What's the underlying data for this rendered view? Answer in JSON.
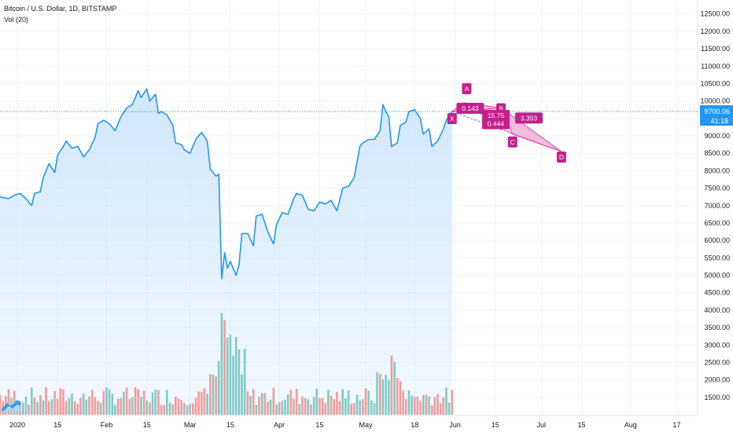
{
  "legend": {
    "title": "Bitcoin / U.S. Dollar, 1D, BITSTAMP",
    "volume_label": "Vol (20)"
  },
  "colors": {
    "line": "#2196f3",
    "area_top": "#cfe6fb",
    "vol_up": "#7fcac4",
    "vol_down": "#f49a9a",
    "pattern": "#e040a0",
    "label_bg": "#c2208e",
    "price_line": "#2196f3"
  },
  "price_tag": {
    "value": "9700.06",
    "countdown": "41:18"
  },
  "chart_data": {
    "type": "line",
    "title": "Bitcoin / U.S. Dollar, 1D, BITSTAMP",
    "ylim": [
      1000,
      12900
    ],
    "y_ticks": [
      "1500.00",
      "2000.00",
      "2500.00",
      "3000.00",
      "3500.00",
      "4000.00",
      "4500.00",
      "5000.00",
      "5500.00",
      "6000.00",
      "6500.00",
      "7000.00",
      "7500.00",
      "8000.00",
      "8500.00",
      "9000.00",
      "9500.00",
      "10000.00",
      "10500.00",
      "11000.00",
      "11500.00",
      "12000.00",
      "12500.00"
    ],
    "x_ticks": [
      {
        "date": "2020-01-01",
        "label": "2020"
      },
      {
        "date": "2020-01-15",
        "label": "15"
      },
      {
        "date": "2020-02-01",
        "label": "Feb"
      },
      {
        "date": "2020-02-15",
        "label": "15"
      },
      {
        "date": "2020-03-01",
        "label": "Mar"
      },
      {
        "date": "2020-03-15",
        "label": "15"
      },
      {
        "date": "2020-04-01",
        "label": "Apr"
      },
      {
        "date": "2020-04-15",
        "label": "15"
      },
      {
        "date": "2020-05-01",
        "label": "May"
      },
      {
        "date": "2020-05-18",
        "label": "18"
      },
      {
        "date": "2020-06-01",
        "label": "Jun"
      },
      {
        "date": "2020-06-15",
        "label": "15"
      },
      {
        "date": "2020-07-01",
        "label": "Jul"
      },
      {
        "date": "2020-07-15",
        "label": "15"
      },
      {
        "date": "2020-08-01",
        "label": "Aug"
      },
      {
        "date": "2020-08-17",
        "label": "17"
      }
    ],
    "x_range": [
      "2019-12-26",
      "2020-08-24"
    ],
    "price_points": [
      [
        "2019-12-26",
        7250
      ],
      [
        "2019-12-29",
        7200
      ],
      [
        "2019-12-31",
        7300
      ],
      [
        "2020-01-02",
        7350
      ],
      [
        "2020-01-04",
        7200
      ],
      [
        "2020-01-06",
        7000
      ],
      [
        "2020-01-07",
        7350
      ],
      [
        "2020-01-09",
        7400
      ],
      [
        "2020-01-10",
        7800
      ],
      [
        "2020-01-12",
        8200
      ],
      [
        "2020-01-14",
        7950
      ],
      [
        "2020-01-15",
        8450
      ],
      [
        "2020-01-17",
        8700
      ],
      [
        "2020-01-18",
        8850
      ],
      [
        "2020-01-20",
        8650
      ],
      [
        "2020-01-22",
        8700
      ],
      [
        "2020-01-24",
        8400
      ],
      [
        "2020-01-26",
        8600
      ],
      [
        "2020-01-28",
        8950
      ],
      [
        "2020-01-29",
        9350
      ],
      [
        "2020-01-31",
        9450
      ],
      [
        "2020-02-02",
        9350
      ],
      [
        "2020-02-04",
        9150
      ],
      [
        "2020-02-06",
        9550
      ],
      [
        "2020-02-08",
        9800
      ],
      [
        "2020-02-10",
        9900
      ],
      [
        "2020-02-12",
        10300
      ],
      [
        "2020-02-13",
        10100
      ],
      [
        "2020-02-15",
        10350
      ],
      [
        "2020-02-16",
        10000
      ],
      [
        "2020-02-18",
        10200
      ],
      [
        "2020-02-19",
        9650
      ],
      [
        "2020-02-20",
        9700
      ],
      [
        "2020-02-22",
        9600
      ],
      [
        "2020-02-24",
        9300
      ],
      [
        "2020-02-25",
        8800
      ],
      [
        "2020-02-27",
        8750
      ],
      [
        "2020-02-28",
        8600
      ],
      [
        "2020-03-01",
        8500
      ],
      [
        "2020-03-03",
        8900
      ],
      [
        "2020-03-05",
        9100
      ],
      [
        "2020-03-07",
        8850
      ],
      [
        "2020-03-08",
        8050
      ],
      [
        "2020-03-10",
        7850
      ],
      [
        "2020-03-11",
        7900
      ],
      [
        "2020-03-12",
        4900
      ],
      [
        "2020-03-13",
        5650
      ],
      [
        "2020-03-14",
        5200
      ],
      [
        "2020-03-15",
        5400
      ],
      [
        "2020-03-17",
        5000
      ],
      [
        "2020-03-18",
        5300
      ],
      [
        "2020-03-19",
        6200
      ],
      [
        "2020-03-21",
        6200
      ],
      [
        "2020-03-23",
        5850
      ],
      [
        "2020-03-24",
        6700
      ],
      [
        "2020-03-26",
        6750
      ],
      [
        "2020-03-28",
        6250
      ],
      [
        "2020-03-30",
        5900
      ],
      [
        "2020-03-31",
        6450
      ],
      [
        "2020-04-02",
        6800
      ],
      [
        "2020-04-04",
        6750
      ],
      [
        "2020-04-06",
        7200
      ],
      [
        "2020-04-07",
        7350
      ],
      [
        "2020-04-09",
        7300
      ],
      [
        "2020-04-11",
        6900
      ],
      [
        "2020-04-13",
        6850
      ],
      [
        "2020-04-15",
        7100
      ],
      [
        "2020-04-17",
        7050
      ],
      [
        "2020-04-19",
        7150
      ],
      [
        "2020-04-21",
        6850
      ],
      [
        "2020-04-23",
        7500
      ],
      [
        "2020-04-25",
        7550
      ],
      [
        "2020-04-27",
        7800
      ],
      [
        "2020-04-29",
        8700
      ],
      [
        "2020-04-30",
        8800
      ],
      [
        "2020-05-02",
        8900
      ],
      [
        "2020-05-04",
        8900
      ],
      [
        "2020-05-06",
        9150
      ],
      [
        "2020-05-07",
        9900
      ],
      [
        "2020-05-08",
        9700
      ],
      [
        "2020-05-09",
        9550
      ],
      [
        "2020-05-10",
        8700
      ],
      [
        "2020-05-12",
        8800
      ],
      [
        "2020-05-13",
        9300
      ],
      [
        "2020-05-15",
        9400
      ],
      [
        "2020-05-16",
        9700
      ],
      [
        "2020-05-18",
        9750
      ],
      [
        "2020-05-20",
        9500
      ],
      [
        "2020-05-21",
        9050
      ],
      [
        "2020-05-23",
        9200
      ],
      [
        "2020-05-24",
        8700
      ],
      [
        "2020-05-26",
        8850
      ],
      [
        "2020-05-28",
        9200
      ],
      [
        "2020-05-29",
        9450
      ],
      [
        "2020-05-31",
        9700
      ]
    ],
    "volume": {
      "series": [
        {
          "name": "up",
          "color": "#7fcac4",
          "values": [
            1650,
            1700,
            1800,
            2050,
            1800,
            1700,
            1650,
            1750,
            1800,
            1600,
            1900,
            1700,
            1800
          ]
        },
        {
          "name": "down",
          "color": "#f49a9a",
          "values": [
            1600,
            1750,
            1900,
            1850,
            1700,
            1800,
            1900,
            1650,
            4050,
            3750,
            2700,
            2200,
            2000
          ]
        }
      ],
      "peak_dates": [
        "2020-03-12",
        "2020-03-13",
        "2020-05-10"
      ],
      "peaks": [
        4050,
        3850,
        2900
      ]
    },
    "pattern": {
      "name": "",
      "points": [
        {
          "label": "X",
          "date": "2020-05-31",
          "price": 9700
        },
        {
          "label": "A",
          "date": "2020-06-04",
          "price": 9950
        },
        {
          "label": "B",
          "date": "2020-06-17",
          "price": 9800
        },
        {
          "label": "C",
          "date": "2020-06-21",
          "price": 9050
        },
        {
          "label": "D",
          "date": "2020-07-08",
          "price": 8550
        }
      ],
      "ratios": {
        "xb": "0.143",
        "ac": "15.75",
        "bd": "3.393",
        "xd": "0.444"
      }
    },
    "last_price": 9700.06,
    "grid": true,
    "legend_position": "top-left"
  }
}
